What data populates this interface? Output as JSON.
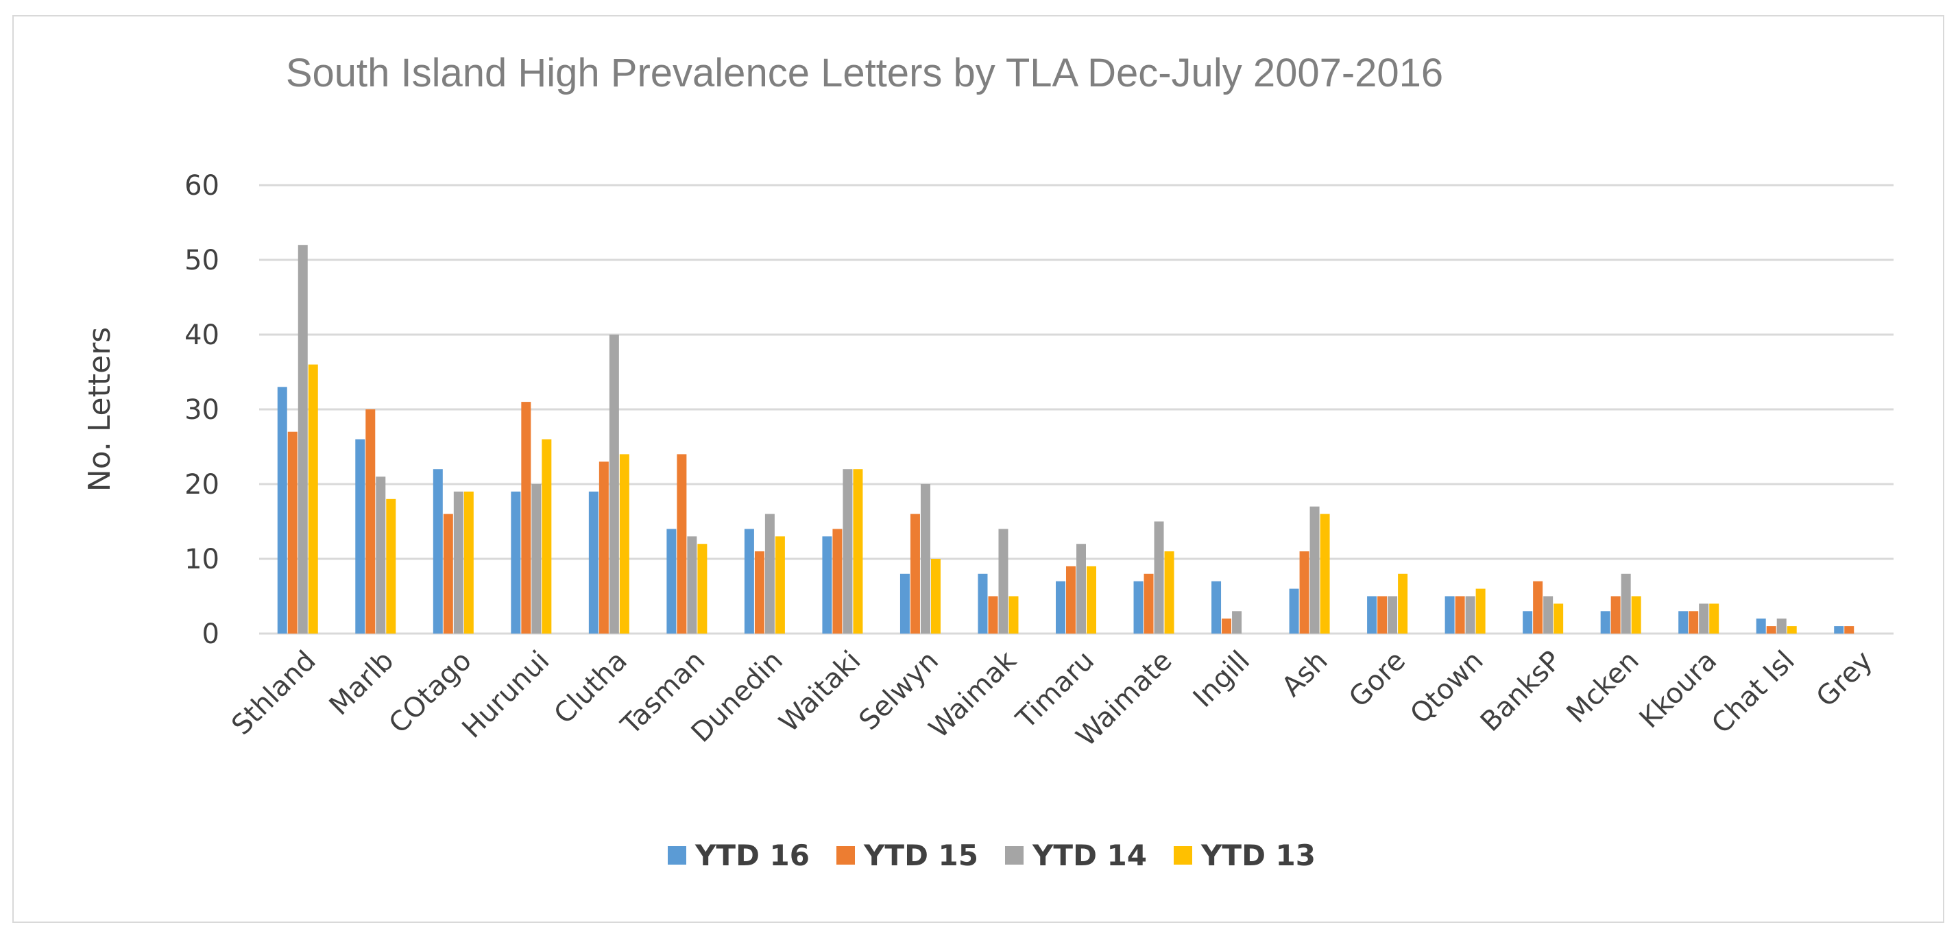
{
  "chart_data": {
    "type": "bar",
    "title": "South Island High Prevalence Letters by TLA  Dec-July 2007-2016",
    "xlabel": "",
    "ylabel": "No. Letters",
    "ylim": [
      0,
      60
    ],
    "yticks": [
      0,
      10,
      20,
      30,
      40,
      50,
      60
    ],
    "grid": true,
    "legend_position": "bottom",
    "categories": [
      "Sthland",
      "Marlb",
      "COtago",
      "Hurunui",
      "Clutha",
      "Tasman",
      "Dunedin",
      "Waitaki",
      "Selwyn",
      "Waimak",
      "Timaru",
      "Waimate",
      "Ingill",
      "Ash",
      "Gore",
      "Qtown",
      "BanksP",
      "Mcken",
      "Kkoura",
      "Chat Isl",
      "Grey"
    ],
    "series": [
      {
        "name": "YTD 16",
        "color": "#5b9bd5",
        "values": [
          33,
          26,
          22,
          19,
          19,
          14,
          14,
          13,
          8,
          8,
          7,
          7,
          7,
          6,
          5,
          5,
          3,
          3,
          3,
          2,
          1
        ]
      },
      {
        "name": "YTD 15",
        "color": "#ed7d31",
        "values": [
          27,
          30,
          16,
          31,
          23,
          24,
          11,
          14,
          16,
          5,
          9,
          8,
          2,
          11,
          5,
          5,
          7,
          5,
          3,
          1,
          1
        ]
      },
      {
        "name": "YTD 14",
        "color": "#a5a5a5",
        "values": [
          52,
          21,
          19,
          20,
          40,
          13,
          16,
          22,
          20,
          14,
          12,
          15,
          3,
          17,
          5,
          5,
          5,
          8,
          4,
          2,
          0
        ]
      },
      {
        "name": "YTD 13",
        "color": "#ffc000",
        "values": [
          36,
          18,
          19,
          26,
          24,
          12,
          13,
          22,
          10,
          5,
          9,
          11,
          0,
          16,
          8,
          6,
          4,
          5,
          4,
          1,
          0
        ]
      }
    ]
  }
}
